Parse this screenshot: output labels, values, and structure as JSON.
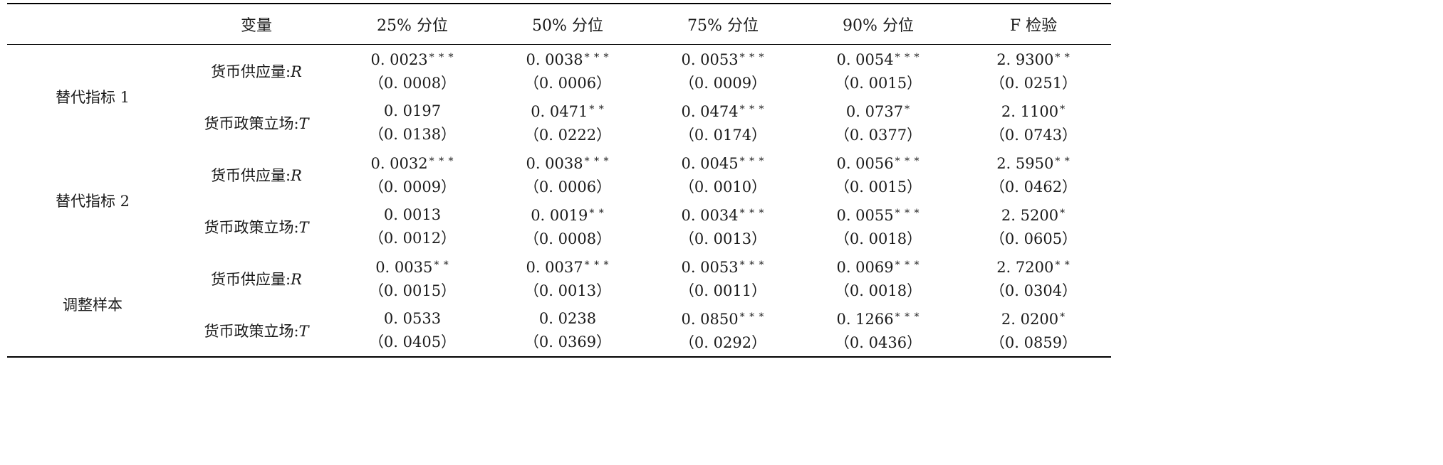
{
  "header": {
    "group": "",
    "variable": "变量",
    "q25": "25% 分位",
    "q50": "50% 分位",
    "q75": "75% 分位",
    "q90": "90% 分位",
    "ftest": "F 检验"
  },
  "groups": [
    {
      "name": "替代指标 1",
      "rows": [
        {
          "var_label": "货币供应量:",
          "var_symbol": "R",
          "cells": [
            {
              "coef": "0. 0023",
              "sig": "* * *",
              "se": "（0. 0008）"
            },
            {
              "coef": "0. 0038",
              "sig": "* * *",
              "se": "（0. 0006）"
            },
            {
              "coef": "0. 0053",
              "sig": "* * *",
              "se": "（0. 0009）"
            },
            {
              "coef": "0. 0054",
              "sig": "* * *",
              "se": "（0. 0015）"
            },
            {
              "coef": "2. 9300",
              "sig": "* *",
              "se": "（0. 0251）"
            }
          ]
        },
        {
          "var_label": "货币政策立场:",
          "var_symbol": "T",
          "cells": [
            {
              "coef": "0. 0197",
              "sig": "",
              "se": "（0. 0138）"
            },
            {
              "coef": "0. 0471",
              "sig": "* *",
              "se": "（0. 0222）"
            },
            {
              "coef": "0. 0474",
              "sig": "* * *",
              "se": "（0. 0174）"
            },
            {
              "coef": "0. 0737",
              "sig": "*",
              "se": "（0. 0377）"
            },
            {
              "coef": "2. 1100",
              "sig": "*",
              "se": "（0. 0743）"
            }
          ]
        }
      ]
    },
    {
      "name": "替代指标 2",
      "rows": [
        {
          "var_label": "货币供应量:",
          "var_symbol": "R",
          "cells": [
            {
              "coef": "0. 0032",
              "sig": "* * *",
              "se": "（0. 0009）"
            },
            {
              "coef": "0. 0038",
              "sig": "* * *",
              "se": "（0. 0006）"
            },
            {
              "coef": "0. 0045",
              "sig": "* * *",
              "se": "（0. 0010）"
            },
            {
              "coef": "0. 0056",
              "sig": "* * *",
              "se": "（0. 0015）"
            },
            {
              "coef": "2. 5950",
              "sig": "* *",
              "se": "（0. 0462）"
            }
          ]
        },
        {
          "var_label": "货币政策立场:",
          "var_symbol": "T",
          "cells": [
            {
              "coef": "0. 0013",
              "sig": "",
              "se": "（0. 0012）"
            },
            {
              "coef": "0. 0019",
              "sig": "* *",
              "se": "（0. 0008）"
            },
            {
              "coef": "0. 0034",
              "sig": "* * *",
              "se": "（0. 0013）"
            },
            {
              "coef": "0. 0055",
              "sig": "* * *",
              "se": "（0. 0018）"
            },
            {
              "coef": "2. 5200",
              "sig": "*",
              "se": "（0. 0605）"
            }
          ]
        }
      ]
    },
    {
      "name": "调整样本",
      "rows": [
        {
          "var_label": "货币供应量:",
          "var_symbol": "R",
          "cells": [
            {
              "coef": "0. 0035",
              "sig": "* *",
              "se": "（0. 0015）"
            },
            {
              "coef": "0. 0037",
              "sig": "* * *",
              "se": "（0. 0013）"
            },
            {
              "coef": "0. 0053",
              "sig": "* * *",
              "se": "（0. 0011）"
            },
            {
              "coef": "0. 0069",
              "sig": "* * *",
              "se": "（0. 0018）"
            },
            {
              "coef": "2. 7200",
              "sig": "* *",
              "se": "（0. 0304）"
            }
          ]
        },
        {
          "var_label": "货币政策立场:",
          "var_symbol": "T",
          "cells": [
            {
              "coef": "0. 0533",
              "sig": "",
              "se": "（0. 0405）"
            },
            {
              "coef": "0. 0238",
              "sig": "",
              "se": "（0. 0369）"
            },
            {
              "coef": "0. 0850",
              "sig": "* * *",
              "se": "（0. 0292）"
            },
            {
              "coef": "0. 1266",
              "sig": "* * *",
              "se": "（0. 0436）"
            },
            {
              "coef": "2. 0200",
              "sig": "*",
              "se": "（0. 0859）"
            }
          ]
        }
      ]
    }
  ]
}
